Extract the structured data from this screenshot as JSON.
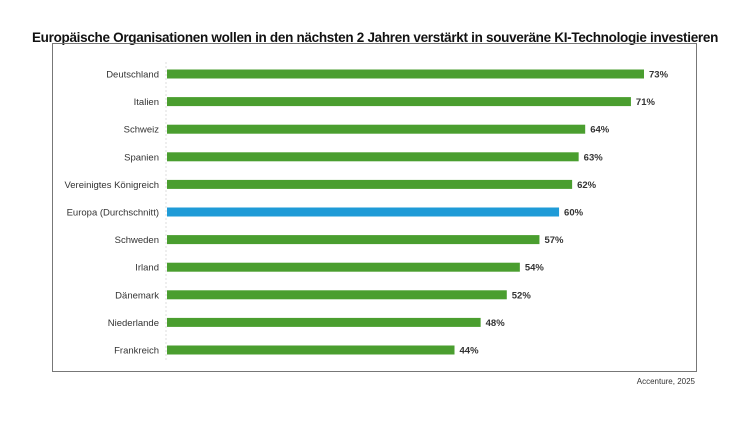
{
  "chart_data": {
    "type": "bar",
    "orientation": "horizontal",
    "title": "Europäische Organisationen wollen in den nächsten 2 Jahren verstärkt in souveräne KI-Technologie investieren",
    "categories": [
      "Deutschland",
      "Italien",
      "Schweiz",
      "Spanien",
      "Vereinigtes Königreich",
      "Europa (Durchschnitt)",
      "Schweden",
      "Irland",
      "Dänemark",
      "Niederlande",
      "Frankreich"
    ],
    "values": [
      73,
      71,
      64,
      63,
      62,
      60,
      57,
      54,
      52,
      48,
      44
    ],
    "value_labels": [
      "73%",
      "71%",
      "64%",
      "63%",
      "62%",
      "60%",
      "57%",
      "54%",
      "52%",
      "48%",
      "44%"
    ],
    "highlight_category": "Europa (Durchschnitt)",
    "colors": {
      "default": "#4a9e2f",
      "highlight": "#1f9bd7"
    },
    "xlim": [
      0,
      100
    ],
    "grid": false,
    "legend": "none",
    "source": "Accenture, 2025"
  }
}
